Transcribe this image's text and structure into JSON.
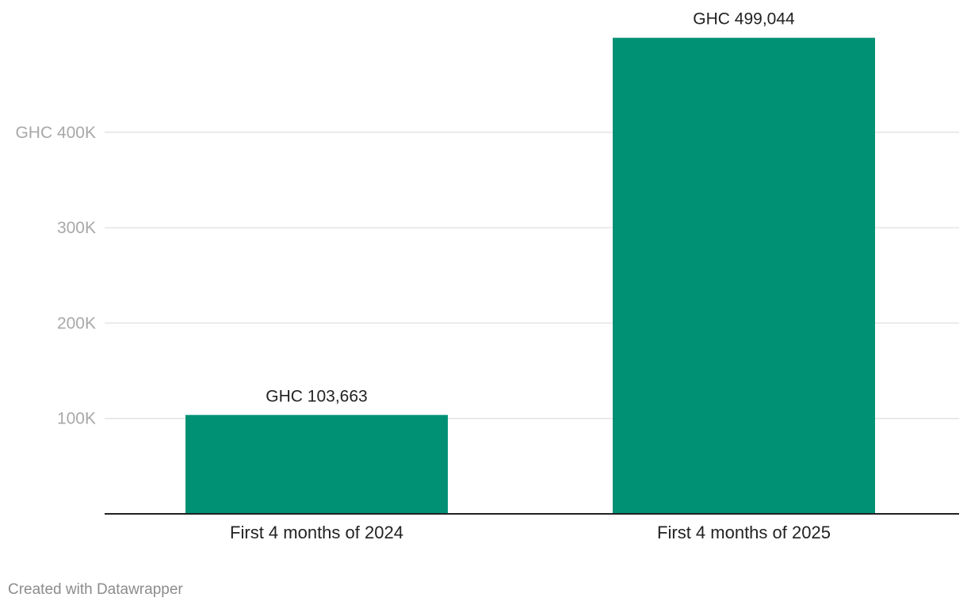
{
  "chart_data": {
    "type": "bar",
    "title": "",
    "xlabel": "",
    "ylabel": "",
    "categories": [
      "First 4 months of 2024",
      "First 4 months of 2025"
    ],
    "values": [
      103663,
      499044
    ],
    "value_labels": [
      "GHC 103,663",
      "GHC 499,044"
    ],
    "ylim": [
      0,
      500000
    ],
    "yticks": [
      100000,
      200000,
      300000,
      400000
    ],
    "ytick_labels": [
      "100K",
      "200K",
      "300K",
      "GHC 400K"
    ],
    "grid": true,
    "legend": "none",
    "bar_color": "#009175"
  },
  "footer": {
    "credit": "Created with Datawrapper"
  }
}
